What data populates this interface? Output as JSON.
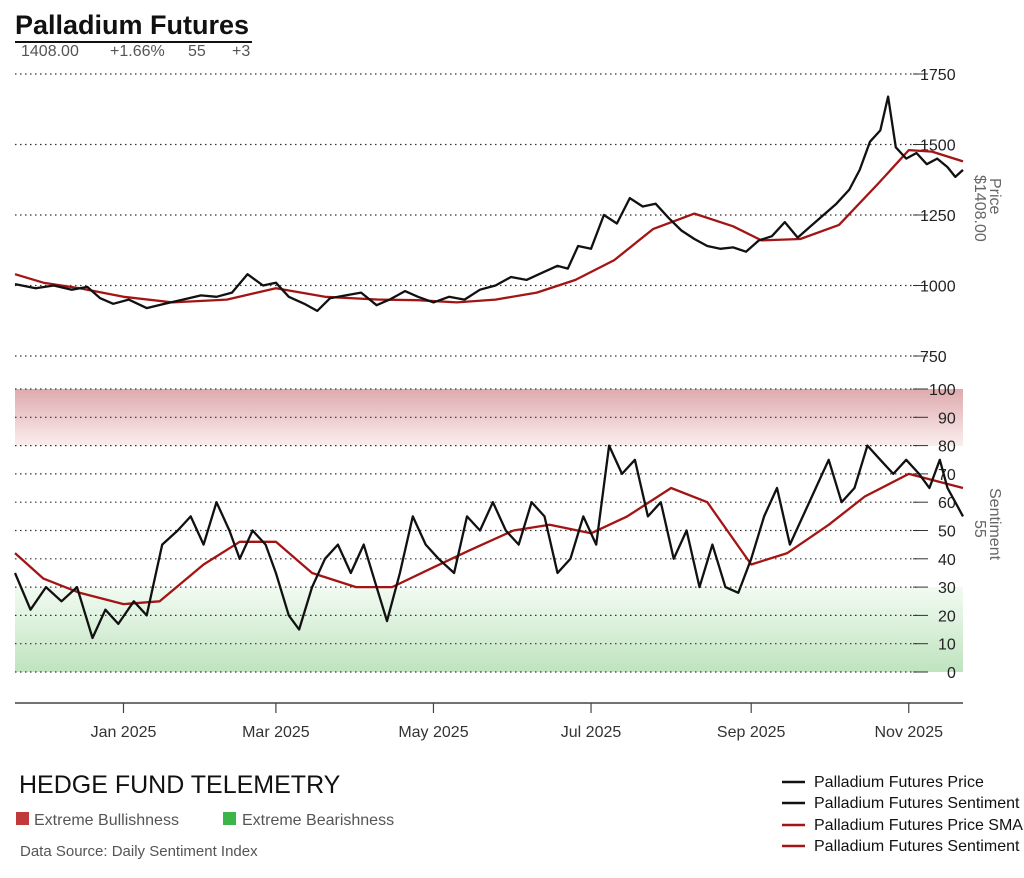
{
  "header": {
    "title": "Palladium Futures",
    "stats": [
      "1408.00",
      "+1.66%",
      "55",
      "+3"
    ]
  },
  "colors": {
    "price_line": "#111111",
    "sma_line": "#a31515",
    "bull_zone": "#e9b9bb",
    "bear_zone": "#bfe6bf",
    "bull_legend": "#c0393b",
    "bear_legend": "#3bb54a"
  },
  "footer": {
    "brand": "HEDGE FUND TELEMETRY",
    "bull_label": "Extreme Bullishness",
    "bear_label": "Extreme Bearishness",
    "source": "Data Source: Daily Sentiment Index"
  },
  "legend": [
    {
      "label": "Palladium Futures Price",
      "color": "#111111"
    },
    {
      "label": "Palladium Futures Sentiment",
      "color": "#111111"
    },
    {
      "label": "Palladium Futures Price SMA",
      "color": "#a31515"
    },
    {
      "label": "Palladium Futures Sentiment SMA",
      "color": "#a31515"
    }
  ],
  "chart_data": [
    {
      "type": "line",
      "panel": "price",
      "ylabel": "Price",
      "current_label": "$1408.00",
      "ylim": [
        750,
        1750
      ],
      "yticks": [
        "1750",
        "1500",
        "1250",
        "1000",
        "750"
      ],
      "x_range": [
        "2024-11-20",
        "2025-11-22"
      ],
      "xticks": [
        {
          "date": "2025-01-01",
          "label": "Jan 2025"
        },
        {
          "date": "2025-03-01",
          "label": "Mar 2025"
        },
        {
          "date": "2025-05-01",
          "label": "May 2025"
        },
        {
          "date": "2025-07-01",
          "label": "Jul 2025"
        },
        {
          "date": "2025-09-01",
          "label": "Sep 2025"
        },
        {
          "date": "2025-11-01",
          "label": "Nov 2025"
        }
      ],
      "grid": true,
      "series": [
        {
          "name": "Palladium Futures Price",
          "points": [
            [
              "2024-11-20",
              1005
            ],
            [
              "2024-11-28",
              990
            ],
            [
              "2024-12-05",
              1000
            ],
            [
              "2024-12-12",
              985
            ],
            [
              "2024-12-18",
              995
            ],
            [
              "2024-12-23",
              955
            ],
            [
              "2024-12-28",
              935
            ],
            [
              "2025-01-03",
              950
            ],
            [
              "2025-01-10",
              920
            ],
            [
              "2025-01-17",
              935
            ],
            [
              "2025-01-24",
              950
            ],
            [
              "2025-01-31",
              965
            ],
            [
              "2025-02-06",
              960
            ],
            [
              "2025-02-12",
              975
            ],
            [
              "2025-02-18",
              1040
            ],
            [
              "2025-02-24",
              1000
            ],
            [
              "2025-03-01",
              1010
            ],
            [
              "2025-03-06",
              960
            ],
            [
              "2025-03-12",
              935
            ],
            [
              "2025-03-17",
              910
            ],
            [
              "2025-03-22",
              955
            ],
            [
              "2025-03-28",
              965
            ],
            [
              "2025-04-03",
              975
            ],
            [
              "2025-04-09",
              930
            ],
            [
              "2025-04-14",
              950
            ],
            [
              "2025-04-20",
              980
            ],
            [
              "2025-04-25",
              960
            ],
            [
              "2025-05-01",
              940
            ],
            [
              "2025-05-07",
              960
            ],
            [
              "2025-05-13",
              950
            ],
            [
              "2025-05-19",
              985
            ],
            [
              "2025-05-25",
              1000
            ],
            [
              "2025-05-31",
              1030
            ],
            [
              "2025-06-06",
              1020
            ],
            [
              "2025-06-12",
              1045
            ],
            [
              "2025-06-18",
              1070
            ],
            [
              "2025-06-22",
              1060
            ],
            [
              "2025-06-26",
              1140
            ],
            [
              "2025-07-01",
              1130
            ],
            [
              "2025-07-06",
              1250
            ],
            [
              "2025-07-11",
              1220
            ],
            [
              "2025-07-16",
              1310
            ],
            [
              "2025-07-21",
              1280
            ],
            [
              "2025-07-26",
              1290
            ],
            [
              "2025-07-31",
              1240
            ],
            [
              "2025-08-05",
              1195
            ],
            [
              "2025-08-10",
              1165
            ],
            [
              "2025-08-15",
              1140
            ],
            [
              "2025-08-20",
              1130
            ],
            [
              "2025-08-25",
              1135
            ],
            [
              "2025-08-30",
              1120
            ],
            [
              "2025-09-04",
              1160
            ],
            [
              "2025-09-09",
              1175
            ],
            [
              "2025-09-14",
              1225
            ],
            [
              "2025-09-19",
              1170
            ],
            [
              "2025-09-24",
              1210
            ],
            [
              "2025-09-29",
              1250
            ],
            [
              "2025-10-04",
              1290
            ],
            [
              "2025-10-09",
              1340
            ],
            [
              "2025-10-13",
              1410
            ],
            [
              "2025-10-17",
              1510
            ],
            [
              "2025-10-21",
              1550
            ],
            [
              "2025-10-24",
              1670
            ],
            [
              "2025-10-27",
              1490
            ],
            [
              "2025-10-31",
              1450
            ],
            [
              "2025-11-04",
              1470
            ],
            [
              "2025-11-08",
              1430
            ],
            [
              "2025-11-12",
              1450
            ],
            [
              "2025-11-16",
              1420
            ],
            [
              "2025-11-19",
              1385
            ],
            [
              "2025-11-22",
              1410
            ]
          ]
        },
        {
          "name": "Palladium Futures Price SMA",
          "points": [
            [
              "2024-11-20",
              1040
            ],
            [
              "2024-12-01",
              1010
            ],
            [
              "2024-12-15",
              990
            ],
            [
              "2025-01-01",
              960
            ],
            [
              "2025-01-20",
              940
            ],
            [
              "2025-02-10",
              950
            ],
            [
              "2025-03-01",
              990
            ],
            [
              "2025-03-20",
              960
            ],
            [
              "2025-04-10",
              950
            ],
            [
              "2025-04-25",
              948
            ],
            [
              "2025-05-10",
              940
            ],
            [
              "2025-05-25",
              950
            ],
            [
              "2025-06-10",
              975
            ],
            [
              "2025-06-25",
              1020
            ],
            [
              "2025-07-10",
              1090
            ],
            [
              "2025-07-25",
              1200
            ],
            [
              "2025-08-10",
              1255
            ],
            [
              "2025-08-25",
              1210
            ],
            [
              "2025-09-05",
              1160
            ],
            [
              "2025-09-20",
              1165
            ],
            [
              "2025-10-05",
              1215
            ],
            [
              "2025-10-20",
              1360
            ],
            [
              "2025-11-01",
              1480
            ],
            [
              "2025-11-10",
              1475
            ],
            [
              "2025-11-22",
              1440
            ]
          ]
        }
      ]
    },
    {
      "type": "line",
      "panel": "sentiment",
      "ylabel": "Sentiment",
      "current_label": "55",
      "ylim": [
        0,
        100
      ],
      "yticks": [
        "100",
        "90",
        "80",
        "70",
        "60",
        "50",
        "40",
        "30",
        "20",
        "10",
        "0"
      ],
      "zones": [
        {
          "label": "Extreme Bullishness",
          "from": 80,
          "to": 100
        },
        {
          "label": "Extreme Bearishness",
          "from": 0,
          "to": 30
        }
      ],
      "grid": true,
      "series": [
        {
          "name": "Palladium Futures Sentiment",
          "points": [
            [
              "2024-11-20",
              35
            ],
            [
              "2024-11-26",
              22
            ],
            [
              "2024-12-02",
              30
            ],
            [
              "2024-12-08",
              25
            ],
            [
              "2024-12-14",
              30
            ],
            [
              "2024-12-20",
              12
            ],
            [
              "2024-12-25",
              22
            ],
            [
              "2024-12-30",
              17
            ],
            [
              "2025-01-05",
              25
            ],
            [
              "2025-01-10",
              20
            ],
            [
              "2025-01-16",
              45
            ],
            [
              "2025-01-22",
              50
            ],
            [
              "2025-01-27",
              55
            ],
            [
              "2025-02-01",
              45
            ],
            [
              "2025-02-06",
              60
            ],
            [
              "2025-02-11",
              50
            ],
            [
              "2025-02-15",
              40
            ],
            [
              "2025-02-20",
              50
            ],
            [
              "2025-02-25",
              45
            ],
            [
              "2025-03-01",
              35
            ],
            [
              "2025-03-06",
              20
            ],
            [
              "2025-03-10",
              15
            ],
            [
              "2025-03-15",
              30
            ],
            [
              "2025-03-20",
              40
            ],
            [
              "2025-03-25",
              45
            ],
            [
              "2025-03-30",
              35
            ],
            [
              "2025-04-04",
              45
            ],
            [
              "2025-04-09",
              30
            ],
            [
              "2025-04-13",
              18
            ],
            [
              "2025-04-18",
              35
            ],
            [
              "2025-04-23",
              55
            ],
            [
              "2025-04-28",
              45
            ],
            [
              "2025-05-03",
              40
            ],
            [
              "2025-05-09",
              35
            ],
            [
              "2025-05-14",
              55
            ],
            [
              "2025-05-19",
              50
            ],
            [
              "2025-05-24",
              60
            ],
            [
              "2025-05-29",
              50
            ],
            [
              "2025-06-03",
              45
            ],
            [
              "2025-06-08",
              60
            ],
            [
              "2025-06-13",
              55
            ],
            [
              "2025-06-18",
              35
            ],
            [
              "2025-06-23",
              40
            ],
            [
              "2025-06-28",
              55
            ],
            [
              "2025-07-03",
              45
            ],
            [
              "2025-07-08",
              80
            ],
            [
              "2025-07-13",
              70
            ],
            [
              "2025-07-18",
              75
            ],
            [
              "2025-07-23",
              55
            ],
            [
              "2025-07-28",
              60
            ],
            [
              "2025-08-02",
              40
            ],
            [
              "2025-08-07",
              50
            ],
            [
              "2025-08-12",
              30
            ],
            [
              "2025-08-17",
              45
            ],
            [
              "2025-08-22",
              30
            ],
            [
              "2025-08-27",
              28
            ],
            [
              "2025-09-01",
              40
            ],
            [
              "2025-09-06",
              55
            ],
            [
              "2025-09-11",
              65
            ],
            [
              "2025-09-16",
              45
            ],
            [
              "2025-09-21",
              55
            ],
            [
              "2025-09-26",
              65
            ],
            [
              "2025-10-01",
              75
            ],
            [
              "2025-10-06",
              60
            ],
            [
              "2025-10-11",
              65
            ],
            [
              "2025-10-16",
              80
            ],
            [
              "2025-10-21",
              75
            ],
            [
              "2025-10-26",
              70
            ],
            [
              "2025-10-31",
              75
            ],
            [
              "2025-11-05",
              70
            ],
            [
              "2025-11-09",
              65
            ],
            [
              "2025-11-13",
              75
            ],
            [
              "2025-11-16",
              65
            ],
            [
              "2025-11-19",
              60
            ],
            [
              "2025-11-22",
              55
            ]
          ]
        },
        {
          "name": "Palladium Futures Sentiment SMA",
          "points": [
            [
              "2024-11-20",
              42
            ],
            [
              "2024-12-01",
              33
            ],
            [
              "2024-12-15",
              28
            ],
            [
              "2025-01-01",
              24
            ],
            [
              "2025-01-15",
              25
            ],
            [
              "2025-02-01",
              38
            ],
            [
              "2025-02-15",
              46
            ],
            [
              "2025-03-01",
              46
            ],
            [
              "2025-03-15",
              35
            ],
            [
              "2025-04-01",
              30
            ],
            [
              "2025-04-15",
              30
            ],
            [
              "2025-05-01",
              37
            ],
            [
              "2025-05-15",
              43
            ],
            [
              "2025-06-01",
              50
            ],
            [
              "2025-06-15",
              52
            ],
            [
              "2025-07-01",
              49
            ],
            [
              "2025-07-15",
              55
            ],
            [
              "2025-08-01",
              65
            ],
            [
              "2025-08-15",
              60
            ],
            [
              "2025-09-01",
              38
            ],
            [
              "2025-09-15",
              42
            ],
            [
              "2025-10-01",
              52
            ],
            [
              "2025-10-15",
              62
            ],
            [
              "2025-11-01",
              70
            ],
            [
              "2025-11-22",
              65
            ]
          ]
        }
      ]
    }
  ]
}
